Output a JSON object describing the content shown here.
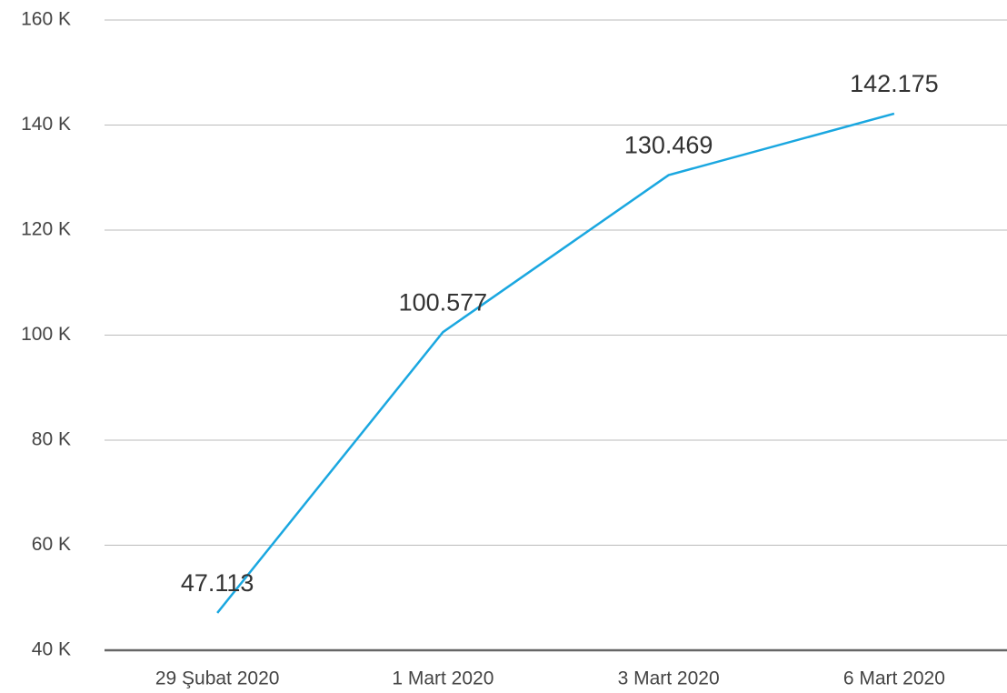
{
  "chart_data": {
    "type": "line",
    "categories": [
      "29 Şubat 2020",
      "1 Mart 2020",
      "3 Mart 2020",
      "6 Mart 2020"
    ],
    "series": [
      {
        "color": "#1aa7e0",
        "values": [
          47113,
          100577,
          130469,
          142175
        ],
        "value_labels": [
          "47.113",
          "100.577",
          "130.469",
          "142.175"
        ]
      }
    ],
    "ylim": [
      40000,
      160000
    ],
    "yticks": [
      {
        "value": 40000,
        "label": "40 K"
      },
      {
        "value": 60000,
        "label": "60 K"
      },
      {
        "value": 80000,
        "label": "80 K"
      },
      {
        "value": 100000,
        "label": "100 K"
      },
      {
        "value": 120000,
        "label": "120 K"
      },
      {
        "value": 140000,
        "label": "140 K"
      },
      {
        "value": 160000,
        "label": "160 K"
      }
    ],
    "grid": true
  }
}
